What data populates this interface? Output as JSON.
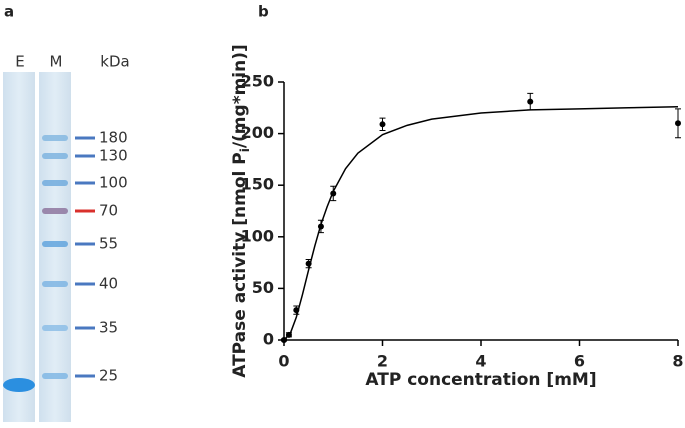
{
  "panel_labels": [
    "a",
    "b"
  ],
  "gel": {
    "lanes": [
      "E",
      "M"
    ],
    "unit": "kDa",
    "markers": [
      180,
      130,
      100,
      70,
      55,
      40,
      35,
      25
    ]
  },
  "chart_data": {
    "type": "scatter",
    "x_label": "ATP concentration [mM]",
    "y_label": [
      "ATPase activity [nmol P",
      "i",
      "/(mg*min)]"
    ],
    "xlim": [
      0,
      8
    ],
    "xticks": [
      0,
      2,
      4,
      6,
      8
    ],
    "ylim": [
      0,
      250
    ],
    "yticks": [
      0,
      50,
      100,
      150,
      200,
      250
    ],
    "series": [
      {
        "color": "#000000",
        "x": [
          0,
          0.1,
          0.25,
          0.5,
          0.75,
          1,
          2,
          5,
          8
        ],
        "values": [
          0,
          5,
          29,
          74,
          110,
          142,
          209,
          231,
          210
        ],
        "errors": [
          1,
          2,
          4,
          4,
          6,
          7,
          6,
          8,
          14
        ]
      },
      {
        "type": "line",
        "color": "#000000",
        "x": [
          0,
          0.125,
          0.25,
          0.375,
          0.5,
          0.625,
          0.75,
          0.875,
          1,
          1.25,
          1.5,
          2,
          2.5,
          3,
          4,
          5,
          6,
          7,
          8
        ],
        "values": [
          0,
          6,
          22,
          44,
          68,
          91,
          112,
          129,
          144,
          166,
          181,
          199,
          208,
          214,
          220,
          223,
          224,
          225,
          226
        ]
      }
    ]
  }
}
